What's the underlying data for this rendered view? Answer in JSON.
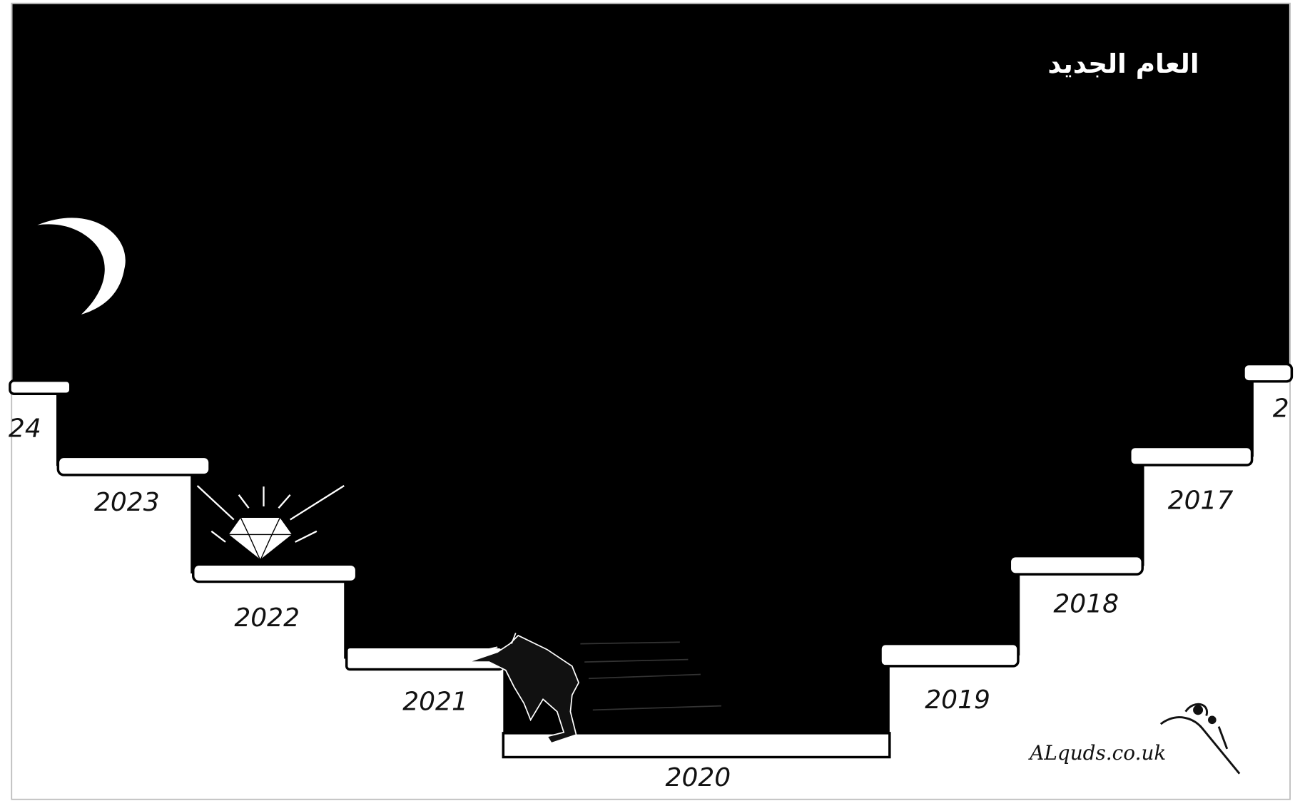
{
  "title": "العام الجديد",
  "steps": [
    {
      "label": "24"
    },
    {
      "label": "2023"
    },
    {
      "label": "2022"
    },
    {
      "label": "2021"
    },
    {
      "label": "2020"
    },
    {
      "label": "2019"
    },
    {
      "label": "2018"
    },
    {
      "label": "2017"
    },
    {
      "label": "2"
    }
  ],
  "signature": "ALquds.co.uk"
}
